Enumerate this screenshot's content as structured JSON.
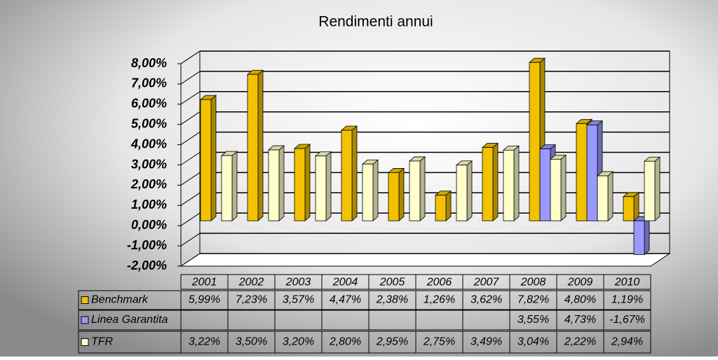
{
  "chart_data": {
    "type": "bar",
    "title": "Rendimenti annui",
    "categories": [
      "2001",
      "2002",
      "2003",
      "2004",
      "2005",
      "2006",
      "2007",
      "2008",
      "2009",
      "2010"
    ],
    "series": [
      {
        "name": "Benchmark",
        "color": "#f2c200",
        "values": [
          5.99,
          7.23,
          3.57,
          4.47,
          2.38,
          1.26,
          3.62,
          7.82,
          4.8,
          1.19
        ],
        "value_labels": [
          "5,99%",
          "7,23%",
          "3,57%",
          "4,47%",
          "2,38%",
          "1,26%",
          "3,62%",
          "7,82%",
          "4,80%",
          "1,19%"
        ]
      },
      {
        "name": "Linea Garantita",
        "color": "#9999ff",
        "values": [
          null,
          null,
          null,
          null,
          null,
          null,
          null,
          3.55,
          4.73,
          -1.67
        ],
        "value_labels": [
          null,
          null,
          null,
          null,
          null,
          null,
          null,
          "3,55%",
          "4,73%",
          "-1,67%"
        ]
      },
      {
        "name": "TFR",
        "color": "#ffffcc",
        "values": [
          3.22,
          3.5,
          3.2,
          2.8,
          2.95,
          2.75,
          3.49,
          3.04,
          2.22,
          2.94
        ],
        "value_labels": [
          "3,22%",
          "3,50%",
          "3,20%",
          "2,80%",
          "2,95%",
          "2,75%",
          "3,49%",
          "3,04%",
          "2,22%",
          "2,94%"
        ]
      }
    ],
    "ylim": [
      -2,
      8
    ],
    "yticks": [
      {
        "value": -2,
        "label": "-2,00%"
      },
      {
        "value": -1,
        "label": "-1,00%"
      },
      {
        "value": 0,
        "label": "0,00%"
      },
      {
        "value": 1,
        "label": "1,00%"
      },
      {
        "value": 2,
        "label": "2,00%"
      },
      {
        "value": 3,
        "label": "3,00%"
      },
      {
        "value": 4,
        "label": "4,00%"
      },
      {
        "value": 5,
        "label": "5,00%"
      },
      {
        "value": 6,
        "label": "6,00%"
      },
      {
        "value": 7,
        "label": "7,00%"
      },
      {
        "value": 8,
        "label": "8,00%"
      }
    ],
    "grid": true
  }
}
